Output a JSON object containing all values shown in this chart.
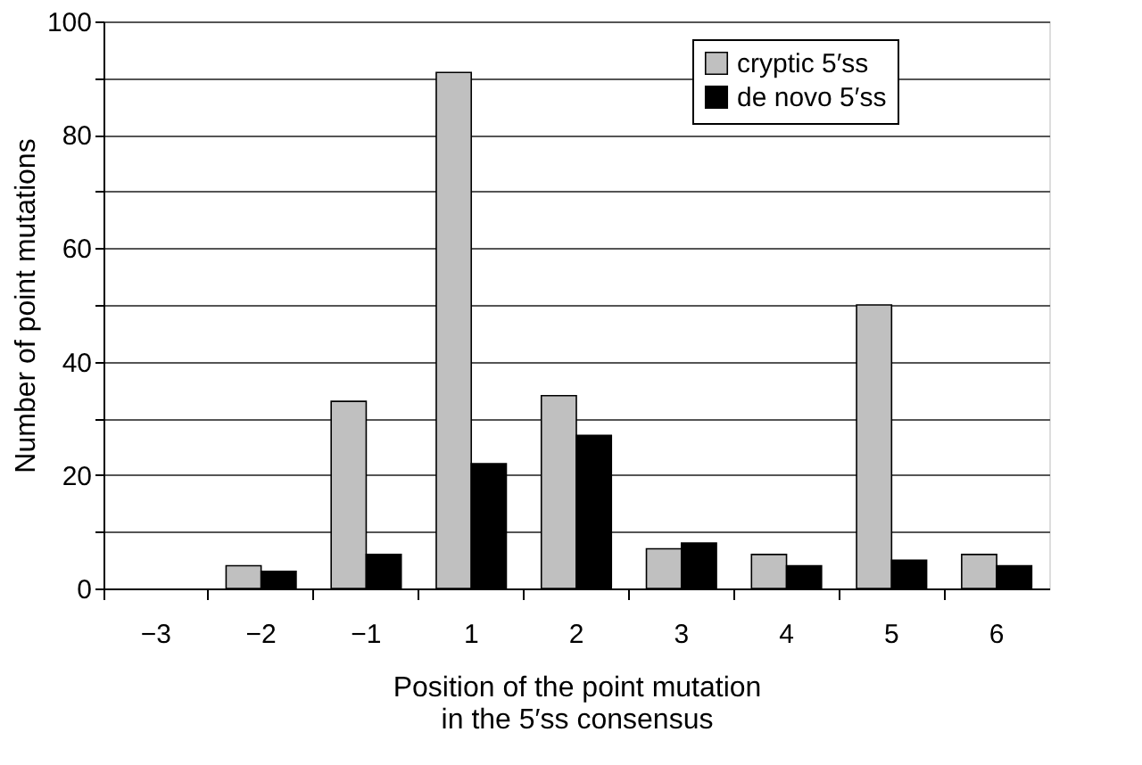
{
  "chart_data": {
    "type": "bar",
    "xlabel": "Position of the point mutation\nin the 5′ss consensus",
    "ylabel": "Number of point mutations",
    "categories": [
      "−3",
      "−2",
      "−1",
      "1",
      "2",
      "3",
      "4",
      "5",
      "6"
    ],
    "series": [
      {
        "name": "cryptic 5′ss",
        "color": "#c0c0c0",
        "values": [
          null,
          4,
          33,
          91,
          34,
          7,
          6,
          50,
          6
        ]
      },
      {
        "name": "de novo 5′ss",
        "color": "#000000",
        "values": [
          null,
          3,
          6,
          22,
          27,
          8,
          4,
          5,
          4
        ]
      }
    ],
    "ylim": [
      0,
      100
    ],
    "yticks": [
      0,
      {
        "value": 10,
        "label": null
      },
      20,
      {
        "value": 30,
        "label": null
      },
      40,
      {
        "value": 50,
        "label": null
      },
      60,
      {
        "value": 70,
        "label": null
      },
      80,
      {
        "value": 90,
        "label": null
      },
      100
    ],
    "grid": "y",
    "legend": "top right"
  }
}
